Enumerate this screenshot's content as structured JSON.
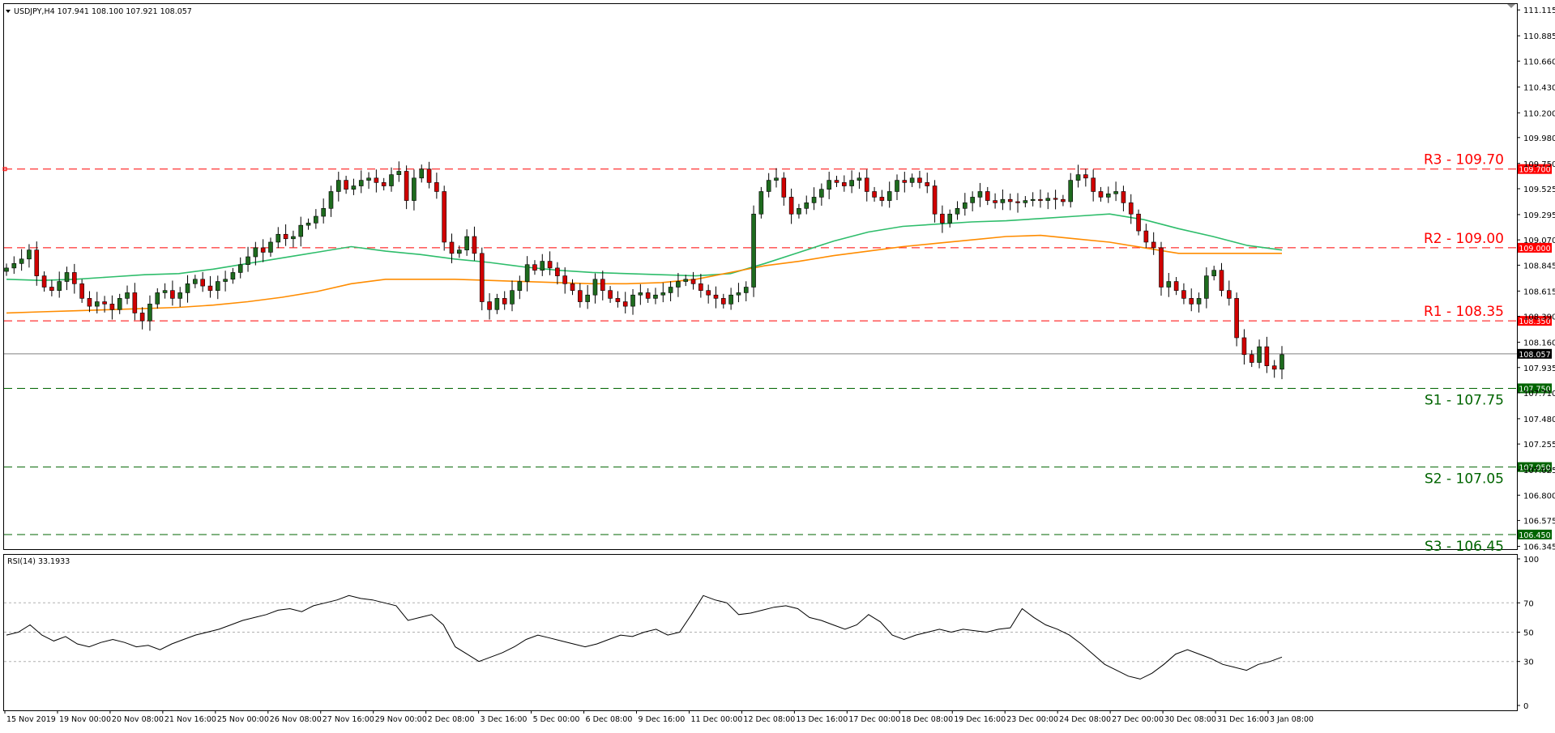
{
  "chart_data": [
    {
      "type": "candlestick",
      "symbol_info": {
        "title": "USDJPY,H4",
        "ohlc_text": "107.941 108.100 107.921 108.057"
      },
      "current_price": 108.057,
      "y_ticks": [
        111.115,
        110.885,
        110.66,
        110.43,
        110.2,
        109.98,
        109.75,
        109.525,
        109.295,
        109.07,
        108.845,
        108.615,
        108.39,
        108.16,
        107.935,
        107.71,
        107.48,
        107.255,
        107.025,
        106.8,
        106.575,
        106.345
      ],
      "ylim": [
        106.32,
        111.16
      ],
      "x_labels": [
        "15 Nov 2019",
        "19 Nov 00:00",
        "20 Nov 08:00",
        "21 Nov 16:00",
        "25 Nov 00:00",
        "26 Nov 08:00",
        "27 Nov 16:00",
        "29 Nov 00:00",
        "2 Dec 08:00",
        "3 Dec 16:00",
        "5 Dec 00:00",
        "6 Dec 08:00",
        "9 Dec 16:00",
        "11 Dec 00:00",
        "12 Dec 08:00",
        "13 Dec 16:00",
        "17 Dec 00:00",
        "18 Dec 08:00",
        "19 Dec 16:00",
        "23 Dec 00:00",
        "24 Dec 08:00",
        "27 Dec 00:00",
        "30 Dec 08:00",
        "31 Dec 16:00",
        "3 Jan 08:00"
      ],
      "levels": [
        {
          "label": "R3 - 109.70",
          "value": 109.7,
          "tag": "109.700",
          "kind": "resistance",
          "color": "#ff0000"
        },
        {
          "label": "R2 - 109.00",
          "value": 109.0,
          "tag": "109.000",
          "kind": "resistance",
          "color": "#ff0000"
        },
        {
          "label": "R1 - 108.35",
          "value": 108.35,
          "tag": "108.350",
          "kind": "resistance",
          "color": "#ff0000"
        },
        {
          "label": "S1 - 107.75",
          "value": 107.75,
          "tag": "107.750",
          "kind": "support",
          "color": "#006400"
        },
        {
          "label": "S2 - 107.05",
          "value": 107.05,
          "tag": "107.050",
          "kind": "support",
          "color": "#006400"
        },
        {
          "label": "S3 - 106.45",
          "value": 106.45,
          "tag": "106.450",
          "kind": "support",
          "color": "#006400"
        }
      ],
      "closes": [
        108.82,
        108.86,
        108.9,
        108.98,
        108.75,
        108.65,
        108.62,
        108.7,
        108.78,
        108.68,
        108.55,
        108.48,
        108.52,
        108.5,
        108.45,
        108.55,
        108.6,
        108.42,
        108.35,
        108.5,
        108.6,
        108.62,
        108.55,
        108.6,
        108.68,
        108.72,
        108.66,
        108.62,
        108.7,
        108.72,
        108.78,
        108.85,
        108.92,
        109.0,
        108.96,
        109.05,
        109.12,
        109.08,
        109.1,
        109.2,
        109.22,
        109.28,
        109.35,
        109.5,
        109.6,
        109.52,
        109.55,
        109.6,
        109.62,
        109.58,
        109.55,
        109.65,
        109.68,
        109.42,
        109.62,
        109.7,
        109.58,
        109.5,
        109.05,
        108.95,
        108.98,
        109.1,
        108.95,
        108.52,
        108.45,
        108.55,
        108.5,
        108.62,
        108.7,
        108.85,
        108.8,
        108.88,
        108.82,
        108.75,
        108.68,
        108.62,
        108.52,
        108.58,
        108.72,
        108.62,
        108.55,
        108.52,
        108.48,
        108.58,
        108.6,
        108.55,
        108.58,
        108.6,
        108.65,
        108.7,
        108.72,
        108.68,
        108.62,
        108.58,
        108.55,
        108.5,
        108.58,
        108.6,
        108.65,
        109.3,
        109.5,
        109.6,
        109.62,
        109.45,
        109.3,
        109.35,
        109.4,
        109.45,
        109.52,
        109.6,
        109.58,
        109.55,
        109.6,
        109.62,
        109.5,
        109.45,
        109.42,
        109.5,
        109.6,
        109.58,
        109.62,
        109.58,
        109.55,
        109.3,
        109.22,
        109.3,
        109.35,
        109.4,
        109.45,
        109.5,
        109.42,
        109.4,
        109.43,
        109.41,
        109.4,
        109.42,
        109.43,
        109.42,
        109.44,
        109.43,
        109.41,
        109.6,
        109.65,
        109.62,
        109.5,
        109.45,
        109.48,
        109.5,
        109.4,
        109.3,
        109.15,
        109.05,
        109.0,
        108.65,
        108.7,
        108.62,
        108.55,
        108.5,
        108.55,
        108.75,
        108.8,
        108.62,
        108.55,
        108.2,
        108.05,
        107.98,
        108.12,
        107.95,
        107.92,
        108.05
      ],
      "ma_green": [
        108.72,
        108.71,
        108.72,
        108.74,
        108.76,
        108.77,
        108.81,
        108.86,
        108.91,
        108.96,
        109.01,
        108.97,
        108.94,
        108.9,
        108.87,
        108.83,
        108.8,
        108.78,
        108.77,
        108.76,
        108.75,
        108.77,
        108.86,
        108.96,
        109.06,
        109.14,
        109.19,
        109.21,
        109.23,
        109.24,
        109.26,
        109.28,
        109.3,
        109.25,
        109.17,
        109.1,
        109.02,
        108.98
      ],
      "ma_orange": [
        108.42,
        108.43,
        108.44,
        108.45,
        108.46,
        108.47,
        108.49,
        108.52,
        108.56,
        108.61,
        108.68,
        108.72,
        108.72,
        108.72,
        108.71,
        108.7,
        108.69,
        108.68,
        108.68,
        108.69,
        108.72,
        108.78,
        108.84,
        108.88,
        108.93,
        108.97,
        109.01,
        109.04,
        109.07,
        109.1,
        109.11,
        109.08,
        109.05,
        109.0,
        108.95,
        108.95,
        108.95,
        108.95
      ]
    },
    {
      "type": "line",
      "title": "RSI(14) 33.1933",
      "ylim": [
        0,
        100
      ],
      "y_ticks": [
        100,
        70,
        50,
        30,
        0
      ],
      "levels": [
        70,
        50,
        30
      ],
      "values": [
        48,
        50,
        55,
        48,
        44,
        47,
        42,
        40,
        43,
        45,
        43,
        40,
        41,
        38,
        42,
        45,
        48,
        50,
        52,
        55,
        58,
        60,
        62,
        65,
        66,
        64,
        68,
        70,
        72,
        75,
        73,
        72,
        70,
        68,
        58,
        60,
        62,
        55,
        40,
        35,
        30,
        33,
        36,
        40,
        45,
        48,
        46,
        44,
        42,
        40,
        42,
        45,
        48,
        47,
        50,
        52,
        48,
        50,
        62,
        75,
        72,
        70,
        62,
        63,
        65,
        67,
        68,
        66,
        60,
        58,
        55,
        52,
        55,
        62,
        57,
        48,
        45,
        48,
        50,
        52,
        50,
        52,
        51,
        50,
        52,
        53,
        66,
        60,
        55,
        52,
        48,
        42,
        35,
        28,
        24,
        20,
        18,
        22,
        28,
        35,
        38,
        35,
        32,
        28,
        26,
        24,
        28,
        30,
        33
      ]
    }
  ]
}
